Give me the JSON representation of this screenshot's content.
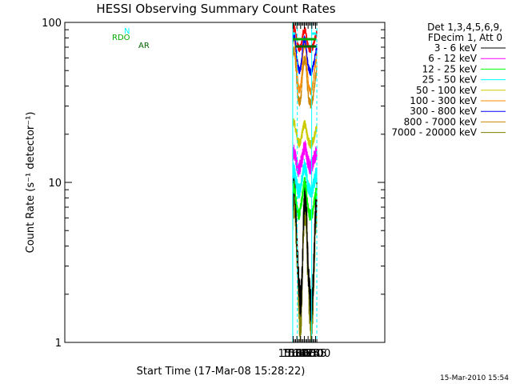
{
  "chart_data": {
    "type": "line",
    "title": "HESSI Observing Summary Count Rates",
    "xlabel": "Start Time (17-Mar-08 15:28:22)",
    "ylabel": "Count Rate (s⁻¹ detector⁻¹)",
    "y_scale": "log",
    "ylim": [
      1,
      100
    ],
    "xlim_minutes": [
      15.5,
      1297.2
    ],
    "x_tick_labels": [
      "15:30",
      "15:45",
      "16:00",
      "16:15",
      "16:30",
      "16:45",
      "17:00"
    ],
    "x_tick_minutes": [
      930,
      945,
      960,
      975,
      990,
      1005,
      1020
    ],
    "y_tick_labels": [
      "1",
      "10",
      "100"
    ],
    "y_tick_values": [
      1,
      10,
      100
    ],
    "legend_header": [
      "Det 1,3,4,5,6,9,",
      "FDecim 1, Att 0"
    ],
    "legend_position": "right",
    "flags": [
      {
        "name": "N",
        "color": "#00ffff",
        "segments": [
          [
            928.4,
            939.5
          ],
          [
            1006.0,
            1022.6
          ]
        ]
      },
      {
        "name": "RDO",
        "color": "#00aa00",
        "segments": [
          [
            929.0,
            1022.6
          ]
        ]
      },
      {
        "name": "AR",
        "color": "#006400",
        "segments": [
          [
            939.5,
            1022.6
          ]
        ]
      }
    ],
    "vertical_markers": [
      {
        "color": "#00ffff",
        "style": "solid",
        "x": [
          928.4,
          1004.3
        ]
      },
      {
        "color": "#00ffff",
        "style": "dashed",
        "x": [
          946.8,
          1025.0
        ]
      }
    ],
    "series": [
      {
        "name": "3 - 6 keV",
        "color": "#000000",
        "x": [
          929,
          933,
          937,
          941,
          945,
          948,
          951,
          954,
          957,
          960,
          963,
          966,
          969,
          972,
          975,
          978,
          981,
          984,
          987,
          990,
          993,
          996,
          999,
          1002,
          1005,
          1008,
          1011,
          1014,
          1017,
          1020,
          1023,
          1025
        ],
        "y": [
          8.5,
          9.5,
          9,
          7,
          4,
          3.3,
          2.8,
          2.2,
          1.9,
          1.8,
          2,
          2.5,
          4,
          6,
          8,
          8.5,
          8,
          6.5,
          4,
          3,
          2.5,
          2,
          1.8,
          1.7,
          1.8,
          2,
          2.5,
          3.5,
          5,
          7,
          8,
          9
        ]
      },
      {
        "name": "6 - 12 keV",
        "color": "#ff00ff",
        "x": [
          929,
          933,
          937,
          941,
          945,
          948,
          951,
          954,
          957,
          960,
          963,
          966,
          969,
          972,
          975,
          978,
          981,
          984,
          987,
          990,
          993,
          996,
          999,
          1002,
          1005,
          1008,
          1011,
          1014,
          1017,
          1020,
          1023,
          1025
        ],
        "y": [
          15,
          15.5,
          15,
          14,
          13,
          12.5,
          12,
          12,
          12.5,
          13,
          13.5,
          14,
          15,
          16,
          16.5,
          16.5,
          16,
          15,
          14,
          13.5,
          13,
          12.5,
          12.5,
          12.5,
          13,
          13,
          13.5,
          14,
          14.5,
          15,
          15,
          15.5
        ]
      },
      {
        "name": "12 - 25 keV",
        "color": "#00ff00",
        "x": [
          929,
          933,
          937,
          941,
          945,
          948,
          951,
          954,
          957,
          960,
          963,
          966,
          969,
          972,
          975,
          978,
          981,
          984,
          987,
          990,
          993,
          996,
          999,
          1002,
          1005,
          1008,
          1011,
          1014,
          1017,
          1020,
          1023,
          1025
        ],
        "y": [
          9,
          9.5,
          9,
          8,
          7,
          6.5,
          6.3,
          6.3,
          6.5,
          7,
          7.5,
          8,
          8.5,
          9.5,
          10,
          10,
          9.5,
          8.5,
          7.5,
          7,
          6.5,
          6.3,
          6.2,
          6.2,
          6.3,
          6.5,
          7,
          7.5,
          8,
          8.5,
          8.5,
          9
        ]
      },
      {
        "name": "25 - 50 keV",
        "color": "#00ffff",
        "x": [
          929,
          933,
          937,
          941,
          945,
          948,
          951,
          954,
          957,
          960,
          963,
          966,
          969,
          972,
          975,
          978,
          981,
          984,
          987,
          990,
          993,
          996,
          999,
          1002,
          1005,
          1008,
          1011,
          1014,
          1017,
          1020,
          1023,
          1025
        ],
        "y": [
          11.5,
          12,
          11.5,
          10.5,
          9.5,
          9,
          8.8,
          8.8,
          9,
          9.5,
          10,
          10.5,
          11.5,
          12,
          12.5,
          12.5,
          12,
          11,
          10,
          9.5,
          9,
          8.8,
          8.7,
          8.7,
          8.8,
          9,
          9.5,
          10,
          10.5,
          11,
          11,
          11.5
        ]
      },
      {
        "name": "50 - 100 keV",
        "color": "#cccc00",
        "x": [
          929,
          933,
          937,
          941,
          945,
          948,
          951,
          954,
          957,
          960,
          963,
          966,
          969,
          972,
          975,
          978,
          981,
          984,
          987,
          990,
          993,
          996,
          999,
          1002,
          1005,
          1008,
          1011,
          1014,
          1017,
          1020,
          1023,
          1025
        ],
        "y": [
          23,
          24,
          23,
          21,
          19.5,
          18.5,
          18,
          17.5,
          17.5,
          18,
          19,
          20,
          21.5,
          22.5,
          23,
          23,
          22,
          20.5,
          19.5,
          18.5,
          18,
          17.5,
          17.3,
          17.3,
          17.5,
          18,
          18.5,
          19,
          20,
          21,
          21.5,
          22.5
        ]
      },
      {
        "name": "100 - 300 keV",
        "color": "#ff8c00",
        "x": [
          929,
          933,
          937,
          941,
          945,
          948,
          951,
          954,
          957,
          960,
          963,
          966,
          969,
          972,
          975,
          978,
          981,
          984,
          987,
          990,
          993,
          996,
          999,
          1002,
          1005,
          1008,
          1011,
          1014,
          1017,
          1020,
          1023,
          1025
        ],
        "y": [
          75,
          82,
          76,
          62,
          50,
          44,
          40,
          38,
          38,
          40,
          44,
          52,
          62,
          70,
          73,
          73,
          68,
          58,
          48,
          43,
          40,
          38,
          37,
          37,
          38,
          40,
          43,
          47,
          52,
          56,
          58,
          62
        ]
      },
      {
        "name": "300 - 800 keV",
        "color": "#0000ff",
        "x": [
          929,
          933,
          937,
          941,
          945,
          948,
          951,
          954,
          957,
          960,
          963,
          966,
          969,
          972,
          975,
          978,
          981,
          984,
          987,
          990,
          993,
          996,
          999,
          1002,
          1005,
          1008,
          1011,
          1014,
          1017,
          1020,
          1023,
          1025
        ],
        "y": [
          78,
          84,
          80,
          70,
          60,
          55,
          52,
          50,
          50,
          52,
          56,
          62,
          70,
          76,
          79,
          78,
          74,
          66,
          58,
          54,
          51,
          50,
          49,
          49,
          50,
          51,
          54,
          57,
          61,
          65,
          67,
          70
        ]
      },
      {
        "name": "800 - 7000 keV",
        "color": "#cc8800",
        "x": [
          929,
          933,
          937,
          941,
          945,
          948,
          951,
          954,
          957,
          960,
          963,
          966,
          969,
          972,
          975,
          978,
          981,
          984,
          987,
          990,
          993,
          996,
          999,
          1002,
          1005,
          1008,
          1011,
          1014,
          1017,
          1020,
          1023,
          1025
        ],
        "y": [
          62,
          68,
          62,
          52,
          42,
          36,
          33,
          32,
          32,
          33,
          36,
          42,
          50,
          56,
          58,
          58,
          55,
          48,
          40,
          36,
          33,
          32,
          31,
          31,
          32,
          33,
          35,
          38,
          42,
          46,
          48,
          52
        ]
      },
      {
        "name": "7000 - 20000 keV",
        "color": "#808000",
        "x": [
          929,
          933,
          937,
          941,
          945,
          948,
          951,
          954,
          957,
          960,
          963,
          966,
          969,
          972,
          975,
          978,
          981,
          984,
          987,
          990,
          993,
          996,
          999,
          1002,
          1005,
          1008,
          1011,
          1014,
          1017,
          1020,
          1023,
          1025
        ],
        "y": [
          7,
          8,
          7.5,
          5.5,
          3.5,
          2.8,
          2.2,
          1.6,
          1.4,
          1.4,
          1.6,
          2.1,
          3.5,
          5.5,
          7,
          7.5,
          7,
          5.5,
          3.5,
          2.5,
          2,
          1.6,
          1.4,
          1.3,
          1.4,
          1.6,
          2,
          3,
          4.5,
          6,
          7,
          7.5
        ]
      }
    ],
    "top_series": {
      "name": "",
      "color": "#ff0000",
      "x": [
        929,
        933,
        937,
        941,
        945,
        948,
        951,
        954,
        957,
        960,
        963,
        966,
        969,
        972,
        975,
        978,
        981,
        984,
        987,
        990,
        993,
        996,
        999,
        1002,
        1005,
        1008,
        1011,
        1014,
        1017,
        1020,
        1023,
        1025
      ],
      "y": [
        88,
        92,
        90,
        84,
        76,
        72,
        70,
        69,
        69,
        70,
        72,
        78,
        85,
        88,
        90,
        89,
        86,
        80,
        74,
        71,
        69,
        68,
        68,
        68,
        69,
        70,
        72,
        75,
        79,
        82,
        84,
        86
      ]
    }
  },
  "footer": {
    "timestamp": "15-Mar-2010 15:54"
  }
}
